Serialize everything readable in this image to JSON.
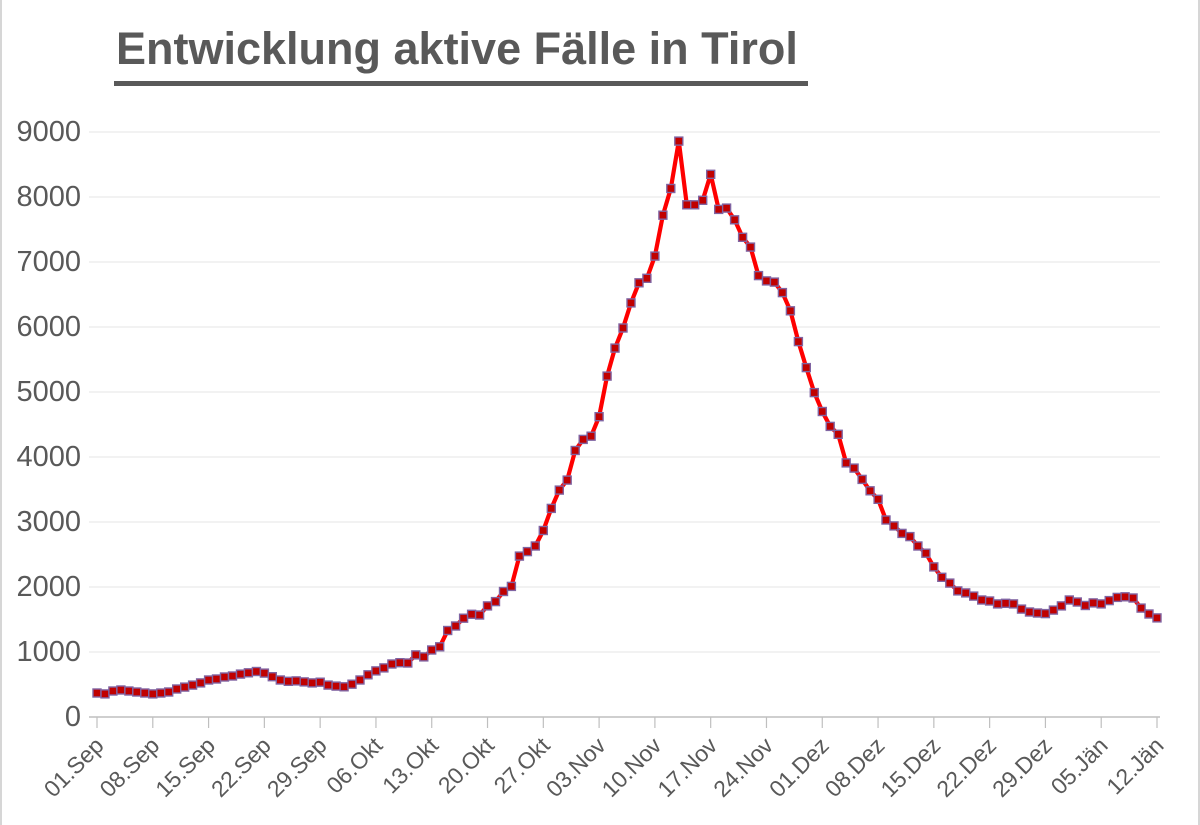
{
  "page": {
    "background": "#FFFFFF",
    "edge_border_color": "#D6D6D6"
  },
  "chart_data": {
    "type": "line",
    "title": "Entwicklung aktive Fälle in Tirol",
    "title_color": "#595959",
    "xlabel": "",
    "ylabel": "",
    "x_tick_labels": [
      "01.Sep",
      "08.Sep",
      "15.Sep",
      "22.Sep",
      "29.Sep",
      "06.Okt",
      "13.Okt",
      "20.Okt",
      "27.Okt",
      "03.Nov",
      "10.Nov",
      "17.Nov",
      "24.Nov",
      "01.Dez",
      "08.Dez",
      "15.Dez",
      "22.Dez",
      "29.Dez",
      "05.Jän",
      "12.Jän"
    ],
    "x_tick_interval_days": 7,
    "y_tick_labels": [
      "0",
      "1000",
      "2000",
      "3000",
      "4000",
      "5000",
      "6000",
      "7000",
      "8000",
      "9000"
    ],
    "ylim": [
      0,
      9000
    ],
    "grid": {
      "horizontal": true,
      "vertical": false,
      "color": "#E4E4E4"
    },
    "axis_color": "#BFBFBF",
    "label_color": "#595959",
    "legend": null,
    "series": [
      {
        "name": "aktive Fälle",
        "start_label": "01.Sep",
        "end_label": "12.Jän",
        "line_color": "#FE0000",
        "marker": "square",
        "marker_fill": "#C00000",
        "marker_border": "#8064A2",
        "values": [
          370,
          355,
          400,
          415,
          400,
          385,
          370,
          355,
          370,
          385,
          430,
          460,
          490,
          525,
          570,
          585,
          615,
          630,
          660,
          680,
          700,
          675,
          620,
          570,
          550,
          555,
          540,
          525,
          535,
          490,
          475,
          465,
          505,
          570,
          650,
          710,
          755,
          815,
          835,
          830,
          955,
          925,
          1030,
          1080,
          1330,
          1400,
          1520,
          1580,
          1570,
          1710,
          1775,
          1930,
          2010,
          2475,
          2545,
          2630,
          2870,
          3210,
          3490,
          3645,
          4100,
          4270,
          4320,
          4620,
          5245,
          5675,
          5985,
          6370,
          6680,
          6750,
          7090,
          7720,
          8130,
          8860,
          7880,
          7880,
          7950,
          8350,
          7810,
          7830,
          7650,
          7380,
          7230,
          6790,
          6710,
          6690,
          6530,
          6250,
          5775,
          5375,
          4990,
          4700,
          4470,
          4350,
          3910,
          3830,
          3655,
          3480,
          3350,
          3030,
          2940,
          2825,
          2775,
          2630,
          2520,
          2310,
          2150,
          2060,
          1940,
          1910,
          1860,
          1800,
          1785,
          1740,
          1750,
          1740,
          1660,
          1615,
          1600,
          1590,
          1645,
          1710,
          1800,
          1770,
          1715,
          1755,
          1740,
          1790,
          1840,
          1850,
          1830,
          1675,
          1585,
          1525
        ]
      }
    ]
  }
}
